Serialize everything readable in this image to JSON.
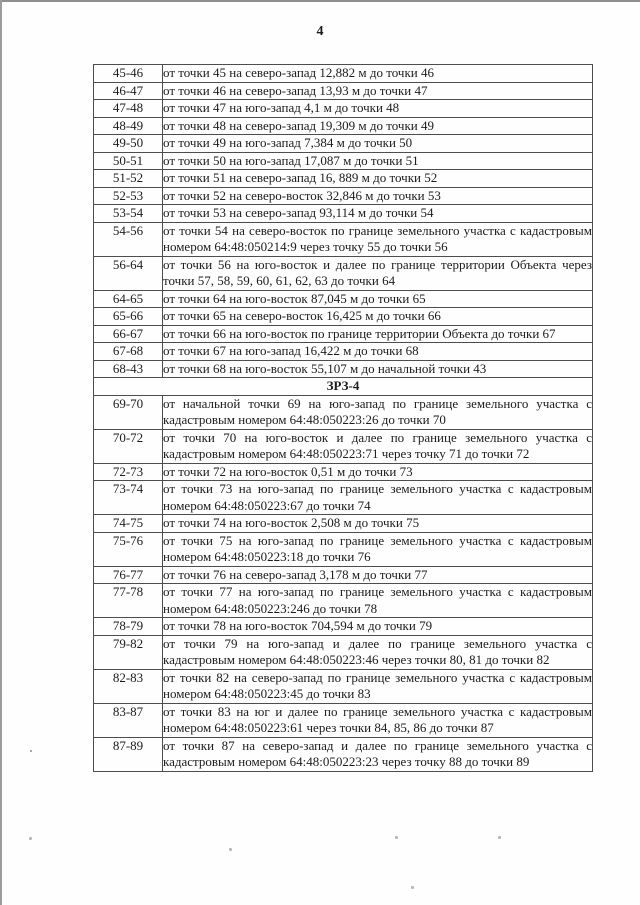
{
  "page": {
    "number": "4"
  },
  "table": {
    "sections": [
      {
        "header": "",
        "rows": [
          {
            "range": "45-46",
            "text": "от точки 45 на северо-запад 12,882 м до точки 46"
          },
          {
            "range": "46-47",
            "text": "от точки 46 на северо-запад 13,93 м до точки 47"
          },
          {
            "range": "47-48",
            "text": "от точки 47 на юго-запад 4,1 м до точки 48"
          },
          {
            "range": "48-49",
            "text": "от точки 48 на северо-запад 19,309 м до точки 49"
          },
          {
            "range": "49-50",
            "text": "от точки 49 на юго-запад 7,384 м до точки 50"
          },
          {
            "range": "50-51",
            "text": "от точки 50 на юго-запад 17,087 м до точки 51"
          },
          {
            "range": "51-52",
            "text": "от точки 51 на северо-запад 16, 889 м до точки 52"
          },
          {
            "range": "52-53",
            "text": "от точки 52 на северо-восток 32,846 м до точки 53"
          },
          {
            "range": "53-54",
            "text": "от точки 53 на северо-запад 93,114 м до точки 54"
          },
          {
            "range": "54-56",
            "text": "от точки 54 на северо-восток по границе земельного участка с кадастровым номером 64:48:050214:9 через точку 55 до точки 56"
          },
          {
            "range": "56-64",
            "text": "от точки 56 на юго-восток и далее по границе территории Объекта через точки 57, 58, 59, 60, 61, 62, 63 до точки 64"
          },
          {
            "range": "64-65",
            "text": "от точки 64 на юго-восток 87,045 м до точки 65"
          },
          {
            "range": "65-66",
            "text": "от точки 65 на северо-восток 16,425 м до точки 66"
          },
          {
            "range": "66-67",
            "text": "от точки 66 на юго-восток по границе территории Объекта до точки 67"
          },
          {
            "range": "67-68",
            "text": "от точки 67 на юго-запад 16,422 м до точки 68"
          },
          {
            "range": "68-43",
            "text": "от точки 68 на юго-восток 55,107 м до начальной точки 43"
          }
        ]
      },
      {
        "header": "ЗРЗ-4",
        "rows": [
          {
            "range": "69-70",
            "text": "от начальной точки 69 на юго-запад по границе земельного участка с кадастровым номером 64:48:050223:26 до точки 70"
          },
          {
            "range": "70-72",
            "text": "от точки 70 на юго-восток и далее по границе земельного участка с кадастровым номером 64:48:050223:71 через точку 71 до точки 72"
          },
          {
            "range": "72-73",
            "text": "от точки 72 на юго-восток 0,51 м до точки 73"
          },
          {
            "range": "73-74",
            "text": "от точки 73 на юго-запад по границе земельного участка с кадастровым номером 64:48:050223:67 до точки 74"
          },
          {
            "range": "74-75",
            "text": "от точки 74 на юго-восток 2,508 м до точки 75"
          },
          {
            "range": "75-76",
            "text": "от точки 75 на юго-запад по границе земельного участка с кадастровым номером 64:48:050223:18 до точки 76"
          },
          {
            "range": "76-77",
            "text": "от точки 76 на северо-запад 3,178 м до точки 77"
          },
          {
            "range": "77-78",
            "text": "от точки 77 на юго-запад по границе земельного участка с кадастровым номером 64:48:050223:246 до точки 78"
          },
          {
            "range": "78-79",
            "text": "от точки 78 на юго-восток 704,594 м до точки 79"
          },
          {
            "range": "79-82",
            "text": "от точки 79 на юго-запад и далее по границе земельного участка с кадастровым номером 64:48:050223:46 через точки 80, 81 до точки 82"
          },
          {
            "range": "82-83",
            "text": "от точки 82 на северо-запад по границе земельного участка с кадастровым номером 64:48:050223:45 до точки 83"
          },
          {
            "range": "83-87",
            "text": "от точки 83 на юг и далее по границе земельного участка с кадастровым номером 64:48:050223:61 через точки 84, 85, 86 до точки 87"
          },
          {
            "range": "87-89",
            "text": "от точки 87 на северо-запад и далее по границе земельного участка с кадастровым номером 64:48:050223:23 через точку 88 до точки 89"
          }
        ]
      }
    ]
  }
}
